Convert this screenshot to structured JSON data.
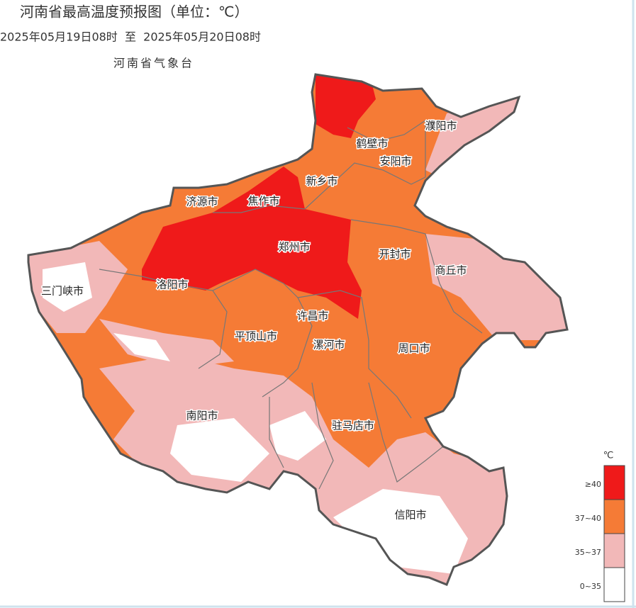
{
  "header": {
    "title": "河南省最高温度预报图（单位：℃）",
    "time": "2025年05月19日08时  至  2025年05月20日08时",
    "source": "河南省气象台"
  },
  "map": {
    "cities": [
      "濮阳市",
      "鹤壁市",
      "安阳市",
      "新乡市",
      "济源市",
      "焦作市",
      "郑州市",
      "开封市",
      "商丘市",
      "三门峡市",
      "洛阳市",
      "许昌市",
      "平顶山市",
      "漯河市",
      "周口市",
      "南阳市",
      "驻马店市",
      "信阳市"
    ]
  },
  "legend": {
    "unit": "℃",
    "items": [
      {
        "label": "≥40",
        "color": "#ef1a1a"
      },
      {
        "label": "37~40",
        "color": "#f57b36"
      },
      {
        "label": "35~37",
        "color": "#f2b8b8"
      },
      {
        "label": "0~35",
        "color": "#ffffff"
      }
    ]
  }
}
